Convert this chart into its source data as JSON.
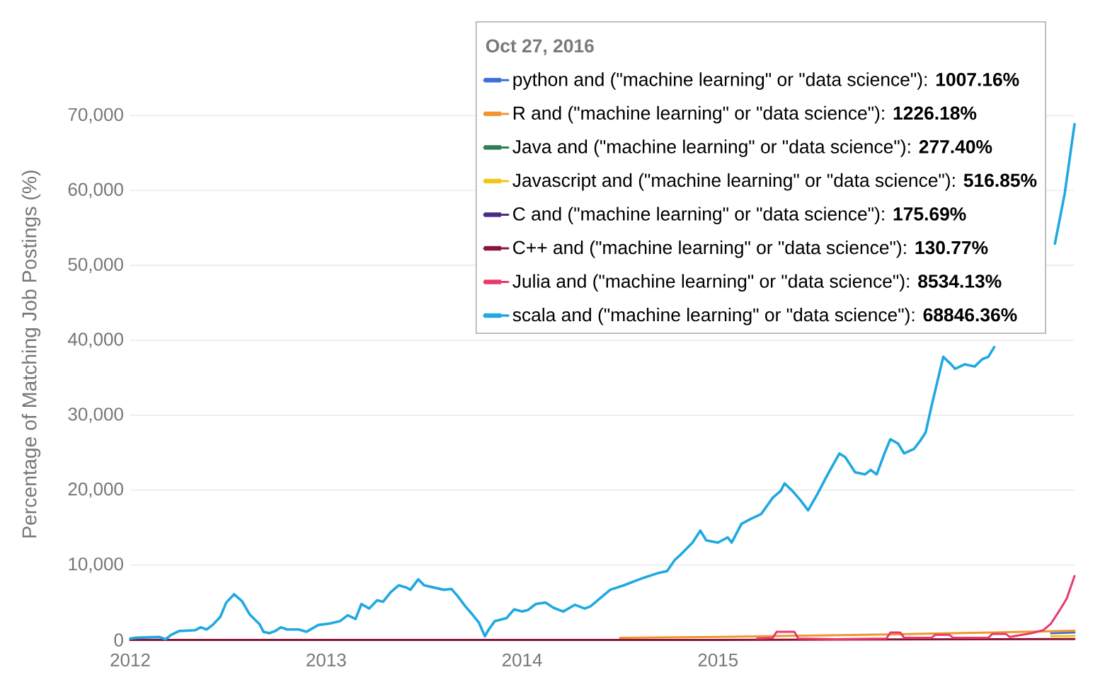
{
  "chart_data": {
    "type": "line",
    "ylabel": "Percentage of Matching Job Postings (%)",
    "legend_title": "Oct 27, 2016",
    "xlim": [
      2012,
      2016.82
    ],
    "xticks": [
      2012,
      2013,
      2014,
      2015
    ],
    "ylim": [
      0,
      70000
    ],
    "yticks": [
      0,
      {
        "value": 10000,
        "label": "10,000"
      },
      {
        "value": 20000,
        "label": "20,000"
      },
      {
        "value": 30000,
        "label": "30,000"
      },
      {
        "value": 40000,
        "label": "40,000"
      },
      {
        "value": 50000,
        "label": "50,000"
      },
      {
        "value": 60000,
        "label": "60,000"
      },
      {
        "value": 70000,
        "label": "70,000"
      }
    ],
    "grid": "y",
    "legend": "top right",
    "series": [
      {
        "name": "python and (\"machine learning\" or \"data science\"): **1007.16%**",
        "color": "#3f6fd9",
        "x": [
          2016.7,
          2016.82
        ],
        "values": [
          900,
          1007.16
        ]
      },
      {
        "name": "R and (\"machine learning\" or \"data science\"): **1226.18%**",
        "color": "#ef9630",
        "x": [
          2014.5,
          2015.0,
          2015.5,
          2016.0,
          2016.4,
          2016.82
        ],
        "values": [
          300,
          400,
          600,
          800,
          1000,
          1226.18
        ]
      },
      {
        "name": "Java and (\"machine learning\" or \"data science\"): **277.40%**",
        "color": "#2f7d52"
      },
      {
        "name": "Javascript and (\"machine learning\" or \"data science\"): **516.85%**",
        "color": "#f2c417",
        "x": [
          2016.7,
          2016.82
        ],
        "values": [
          500,
          516.85
        ]
      },
      {
        "name": "C and (\"machine learning\" or \"data science\"): **175.69%**",
        "color": "#4a2a86"
      },
      {
        "name": "C++ and (\"machine learning\" or \"data science\"): **130.77%**",
        "color": "#8c1538",
        "x": [
          2012.0,
          2013.0,
          2014.0,
          2015.0,
          2016.82
        ],
        "values": [
          0,
          0,
          0,
          0,
          130.77
        ]
      },
      {
        "name": "Julia and (\"machine learning\" or \"data science\"): **8534.13%**",
        "color": "#e83a68",
        "x": [
          2015.2,
          2015.28,
          2015.3,
          2015.39,
          2015.41,
          2015.6,
          2015.86,
          2015.88,
          2015.93,
          2015.95,
          2016.09,
          2016.11,
          2016.18,
          2016.2,
          2016.38,
          2016.4,
          2016.47,
          2016.49,
          2016.6,
          2016.66,
          2016.7,
          2016.74,
          2016.78,
          2016.82
        ],
        "values": [
          200,
          300,
          1100,
          1100,
          200,
          100,
          200,
          1000,
          1000,
          300,
          300,
          700,
          700,
          300,
          300,
          800,
          800,
          400,
          900,
          1300,
          2200,
          3800,
          5500,
          8534.13
        ]
      },
      {
        "name": "scala and (\"machine learning\" or \"data science\"): **68846.36%**",
        "color": "#1fa9e1",
        "x": [
          2012.0,
          2012.03,
          2012.15,
          2012.18,
          2012.21,
          2012.25,
          2012.33,
          2012.36,
          2012.39,
          2012.42,
          2012.46,
          2012.49,
          2012.53,
          2012.57,
          2012.61,
          2012.66,
          2012.68,
          2012.71,
          2012.74,
          2012.77,
          2012.8,
          2012.86,
          2012.9,
          2012.96,
          2013.02,
          2013.07,
          2013.11,
          2013.15,
          2013.18,
          2013.22,
          2013.26,
          2013.29,
          2013.33,
          2013.37,
          2013.41,
          2013.43,
          2013.47,
          2013.5,
          2013.55,
          2013.6,
          2013.64,
          2013.67,
          2013.71,
          2013.74,
          2013.78,
          2013.81,
          2013.83,
          2013.86,
          2013.92,
          2013.96,
          2014.0,
          2014.03,
          2014.07,
          2014.12,
          2014.16,
          2014.21,
          2014.27,
          2014.32,
          2014.35,
          2014.45,
          2014.52,
          2014.62,
          2014.69,
          2014.74,
          2014.78,
          2014.81,
          2014.87,
          2014.91,
          2014.94,
          2015.0,
          2015.05,
          2015.07,
          2015.12,
          2015.17,
          2015.22,
          2015.28,
          2015.32,
          2015.34,
          2015.38,
          2015.42,
          2015.46,
          2015.51,
          2015.56,
          2015.62,
          2015.65,
          2015.7,
          2015.75,
          2015.78,
          2015.81,
          2015.85,
          2015.88,
          2015.92,
          2015.95,
          2016.0,
          2016.03,
          2016.06,
          2016.09,
          2016.13,
          2016.15,
          2016.19,
          2016.21,
          2016.26,
          2016.31,
          2016.35,
          2016.38,
          2016.41,
          2016.55,
          2016.72,
          2016.77,
          2016.82
        ],
        "values": [
          200,
          300,
          400,
          100,
          700,
          1200,
          1300,
          1700,
          1400,
          2000,
          3100,
          5000,
          6100,
          5200,
          3400,
          2100,
          1100,
          900,
          1200,
          1700,
          1400,
          1400,
          1100,
          2000,
          2200,
          2500,
          3300,
          2800,
          4800,
          4200,
          5300,
          5100,
          6400,
          7300,
          7000,
          6700,
          8100,
          7300,
          7000,
          6700,
          6800,
          5900,
          4500,
          3600,
          2300,
          500,
          1400,
          2500,
          2900,
          4100,
          3800,
          4000,
          4800,
          5000,
          4300,
          3800,
          4700,
          4200,
          4500,
          6700,
          7300,
          8300,
          8900,
          9200,
          10700,
          11400,
          13000,
          14600,
          13300,
          13000,
          13700,
          13000,
          15500,
          16200,
          16800,
          19000,
          19900,
          20900,
          19900,
          18700,
          17300,
          19600,
          22100,
          24900,
          24400,
          22400,
          22100,
          22700,
          22100,
          24900,
          26800,
          26200,
          24900,
          25500,
          26500,
          27700,
          31200,
          35600,
          37800,
          36800,
          36200,
          36800,
          36500,
          37500,
          37800,
          39100,
          null,
          52900,
          59600,
          68846.36
        ]
      }
    ]
  }
}
